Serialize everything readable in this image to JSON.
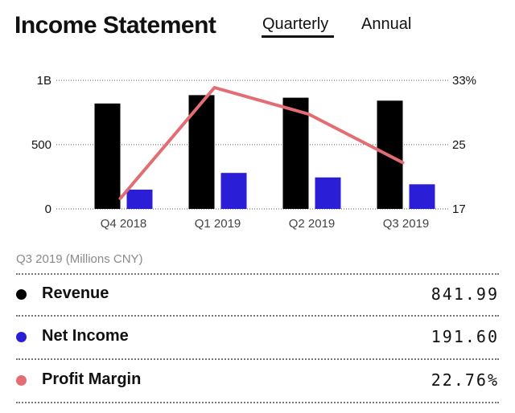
{
  "header": {
    "title": "Income Statement",
    "tabs": [
      {
        "label": "Quarterly",
        "active": true
      },
      {
        "label": "Annual",
        "active": false
      }
    ]
  },
  "chart_data": {
    "type": "bar",
    "categories": [
      "Q4 2018",
      "Q1 2019",
      "Q2 2019",
      "Q3 2019"
    ],
    "series": [
      {
        "name": "Revenue",
        "type": "bar",
        "axis": "left",
        "color": "#000000",
        "values": [
          820,
          885,
          865,
          841.99
        ]
      },
      {
        "name": "Net Income",
        "type": "bar",
        "axis": "left",
        "color": "#2a1fd6",
        "values": [
          150,
          280,
          245,
          191.6
        ]
      },
      {
        "name": "Profit Margin",
        "type": "line",
        "axis": "right",
        "color": "#e36d72",
        "values": [
          18.3,
          32.1,
          28.8,
          22.76
        ]
      }
    ],
    "y_left": {
      "ylim": [
        0,
        1000
      ],
      "ticks": [
        {
          "value": 0,
          "label": "0"
        },
        {
          "value": 500,
          "label": "500"
        },
        {
          "value": 1000,
          "label": "1B"
        }
      ]
    },
    "y_right": {
      "ylim": [
        17,
        33
      ],
      "ticks": [
        {
          "value": 17,
          "label": "17"
        },
        {
          "value": 25,
          "label": "25"
        },
        {
          "value": 33,
          "label": "33%"
        }
      ]
    },
    "grid": true
  },
  "summary": {
    "period_label": "Q3 2019 (Millions CNY)",
    "rows": [
      {
        "label": "Revenue",
        "value": "841.99",
        "color": "#000000"
      },
      {
        "label": "Net Income",
        "value": "191.60",
        "color": "#2a1fd6"
      },
      {
        "label": "Profit Margin",
        "value": "22.76%",
        "color": "#e36d72"
      }
    ]
  }
}
